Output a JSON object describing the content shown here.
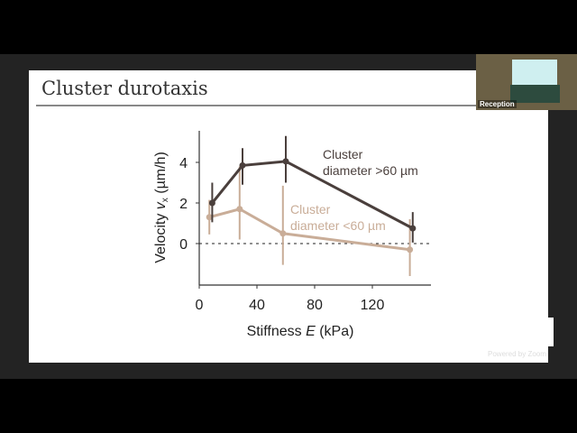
{
  "slide": {
    "title": "Cluster durotaxis"
  },
  "video": {
    "participant_label": "Reception",
    "watermark": "Powered by Zoom"
  },
  "chart_data": {
    "type": "line",
    "title": "",
    "xlabel_parts": [
      "Stiffness ",
      "E",
      " (kPa)"
    ],
    "ylabel_parts": [
      "Velocity  ",
      "v",
      "x",
      "  (µm/h)"
    ],
    "xlim": [
      0,
      160
    ],
    "ylim": [
      -2,
      5.5
    ],
    "xticks": [
      0,
      40,
      80,
      120
    ],
    "yticks": [
      0,
      2,
      4
    ],
    "reference_line": {
      "y": 0,
      "style": "dashed"
    },
    "grid": false,
    "series": [
      {
        "name": "Cluster diameter >60 µm",
        "label_lines": [
          "Cluster",
          "diameter >60 µm"
        ],
        "color": "#4a3f3c",
        "x": [
          9,
          30,
          60,
          148
        ],
        "y": [
          2.0,
          3.85,
          4.05,
          0.75
        ],
        "err_low": [
          1.05,
          2.9,
          3.0,
          0.05
        ],
        "err_high": [
          3.0,
          4.7,
          5.3,
          1.55
        ]
      },
      {
        "name": "Cluster diameter <60 µm",
        "label_lines": [
          "Cluster",
          "diameter <60 µm"
        ],
        "color": "#c9ad98",
        "x": [
          7,
          28,
          58,
          146
        ],
        "y": [
          1.3,
          1.7,
          0.5,
          -0.3
        ],
        "err_low": [
          0.45,
          0.2,
          -1.05,
          -1.6
        ],
        "err_high": [
          2.15,
          3.8,
          2.85,
          1.2
        ]
      }
    ]
  }
}
